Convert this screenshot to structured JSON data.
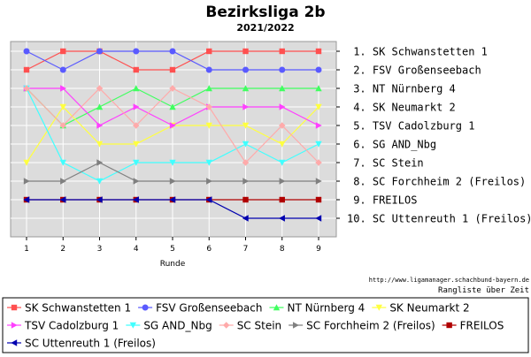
{
  "title": "Bezirksliga 2b",
  "subtitle": "2021/2022",
  "source_url": "http://www.ligamanager.schachbund-bayern.de",
  "caption": "Rangliste über Zeit",
  "colors": {
    "plot_bg": "#dcdcdc",
    "grid": "#ffffff"
  },
  "chart_data": {
    "type": "line",
    "title": "Bezirksliga 2b",
    "subtitle": "2021/2022",
    "xlabel": "Runde",
    "ylabel": "",
    "x": [
      1,
      2,
      3,
      4,
      5,
      6,
      7,
      8,
      9
    ],
    "ylim": [
      10,
      1
    ],
    "y_inverted": true,
    "grid": true,
    "legend_position": "bottom",
    "right_labels": [
      "1. SK Schwanstetten 1",
      "2. FSV Großenseebach",
      "3. NT Nürnberg 4",
      "4. SK Neumarkt 2",
      "5. TSV Cadolzburg 1",
      "6. SG AND_Nbg",
      "7. SC Stein",
      "8. SC Forchheim 2 (Freilos)",
      "9. FREILOS",
      "10. SC Uttenreuth 1 (Freilos)"
    ],
    "series": [
      {
        "name": "SK Schwanstetten 1",
        "color": "#ff5050",
        "marker": "square",
        "values": [
          2,
          1,
          1,
          2,
          2,
          1,
          1,
          1,
          1
        ]
      },
      {
        "name": "FSV Großenseebach",
        "color": "#5a5aff",
        "marker": "circle",
        "values": [
          1,
          2,
          1,
          1,
          1,
          2,
          2,
          2,
          2
        ]
      },
      {
        "name": "NT Nürnberg 4",
        "color": "#40ff60",
        "marker": "triangle-up",
        "values": [
          3,
          5,
          4,
          3,
          4,
          3,
          3,
          3,
          3
        ]
      },
      {
        "name": "SK Neumarkt 2",
        "color": "#ffff40",
        "marker": "triangle-down",
        "values": [
          7,
          4,
          6,
          6,
          5,
          5,
          5,
          6,
          4
        ]
      },
      {
        "name": "TSV Cadolzburg 1",
        "color": "#ff40ff",
        "marker": "triangle-right",
        "values": [
          3,
          3,
          5,
          4,
          5,
          4,
          4,
          4,
          5
        ]
      },
      {
        "name": "SG AND_Nbg",
        "color": "#40ffff",
        "marker": "triangle-down",
        "values": [
          3,
          7,
          8,
          7,
          7,
          7,
          6,
          7,
          6
        ]
      },
      {
        "name": "SC Stein",
        "color": "#ffaaaa",
        "marker": "diamond",
        "values": [
          3,
          5,
          3,
          5,
          3,
          4,
          7,
          5,
          7
        ]
      },
      {
        "name": "SC Forchheim 2 (Freilos)",
        "color": "#808080",
        "marker": "triangle-right",
        "values": [
          8,
          8,
          7,
          8,
          8,
          8,
          8,
          8,
          8
        ]
      },
      {
        "name": "FREILOS",
        "color": "#b00000",
        "marker": "square",
        "values": [
          9,
          9,
          9,
          9,
          9,
          9,
          9,
          9,
          9
        ]
      },
      {
        "name": "SC Uttenreuth 1 (Freilos)",
        "color": "#0000b0",
        "marker": "triangle-left",
        "values": [
          9,
          9,
          9,
          9,
          9,
          9,
          10,
          10,
          10
        ]
      }
    ]
  }
}
